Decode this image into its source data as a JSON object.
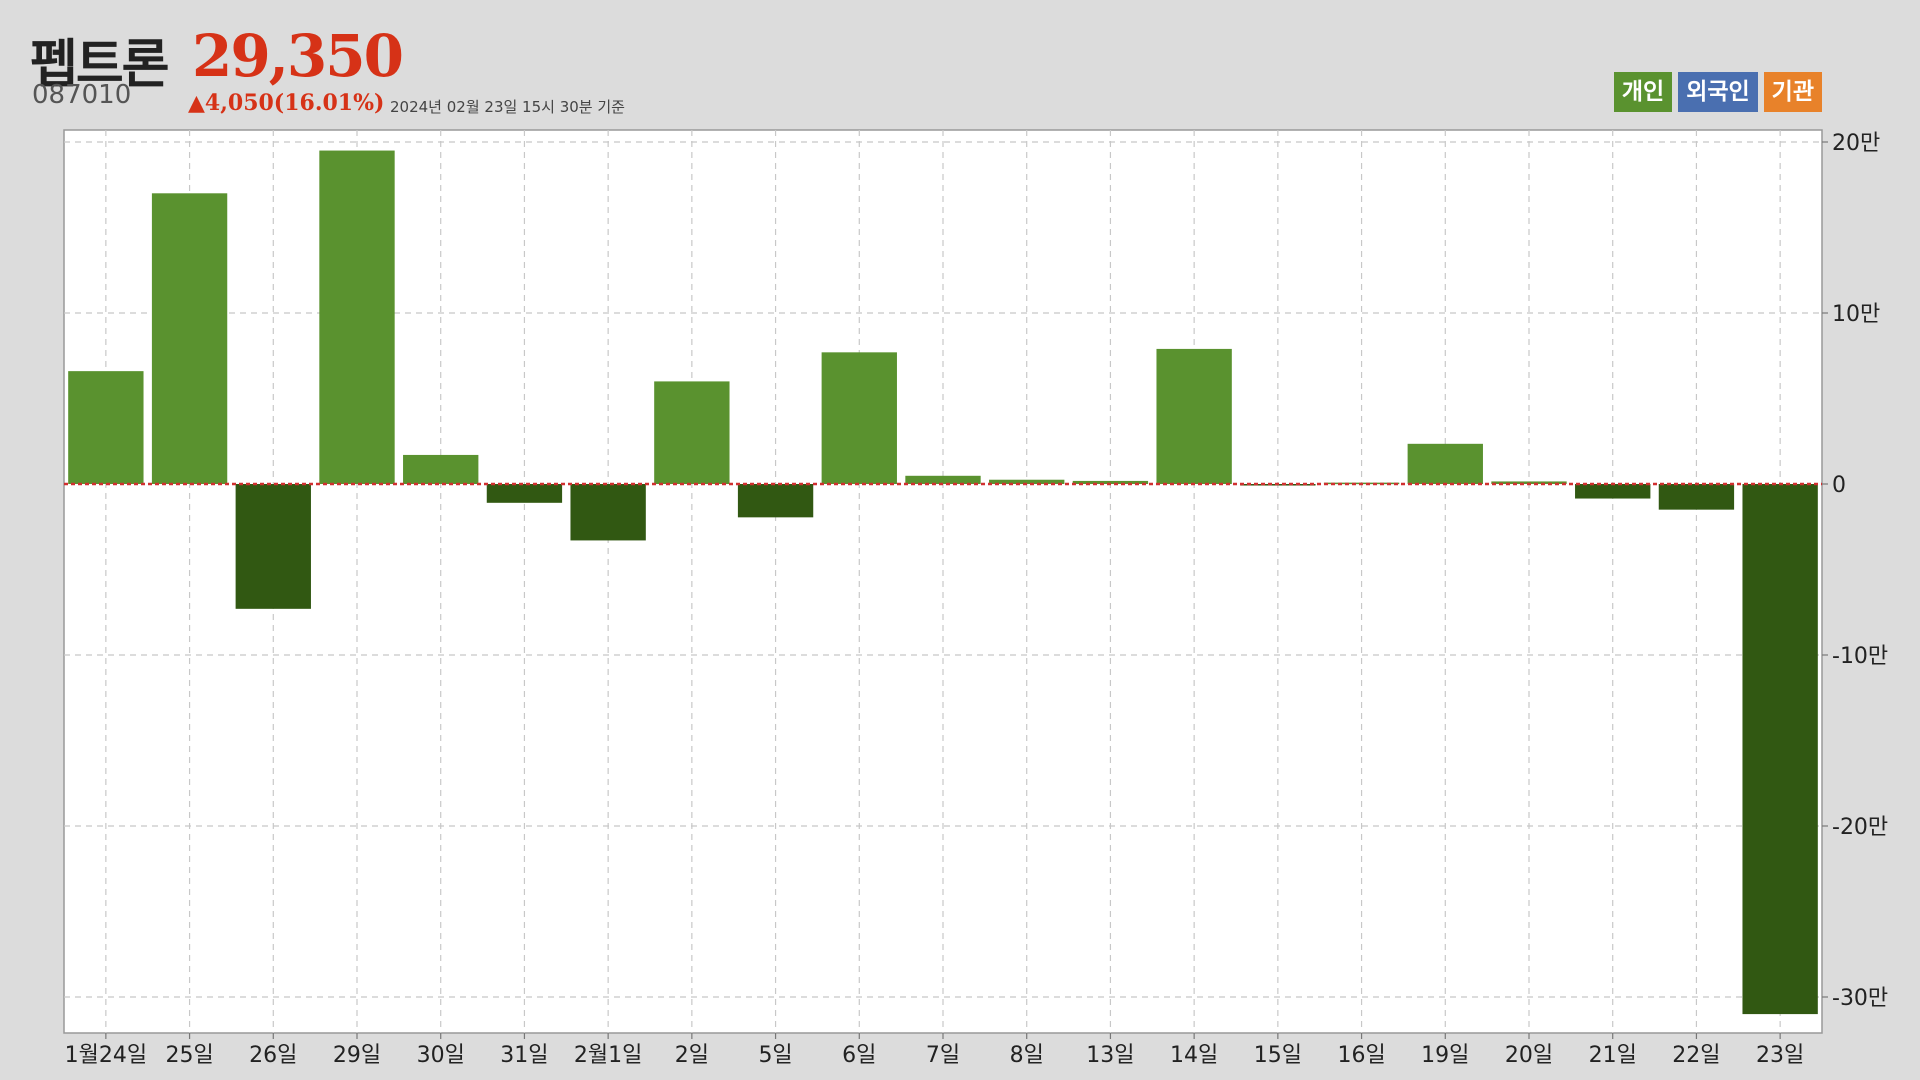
{
  "stock": {
    "name": "펩트론",
    "code": "087010",
    "price": "29,350",
    "change": "▲4,050(16.01%)",
    "as_of": "2024년 02월 23일 15시 30분 기준"
  },
  "legend": [
    {
      "label": "개인",
      "color": "#5a922f"
    },
    {
      "label": "외국인",
      "color": "#4a6fb0"
    },
    {
      "label": "기관",
      "color": "#e8822a"
    }
  ],
  "colors": {
    "positive": "#5a922f",
    "negative": "#315812",
    "zero_line": "#d03030",
    "grid": "#c8c8c8",
    "plot_bg": "#ffffff"
  },
  "chart_data": {
    "type": "bar",
    "title": "",
    "xlabel": "",
    "ylabel": "",
    "ylim": [
      -310000,
      205000
    ],
    "grid": true,
    "yticks": [
      {
        "value": 200000,
        "label": "20만"
      },
      {
        "value": 100000,
        "label": "10만"
      },
      {
        "value": 0,
        "label": "0"
      },
      {
        "value": -100000,
        "label": "-10만"
      },
      {
        "value": -200000,
        "label": "-20만"
      },
      {
        "value": -300000,
        "label": "-30만"
      }
    ],
    "categories": [
      "1월24일",
      "25일",
      "26일",
      "29일",
      "30일",
      "31일",
      "2월1일",
      "2일",
      "5일",
      "6일",
      "7일",
      "8일",
      "13일",
      "14일",
      "15일",
      "16일",
      "19일",
      "20일",
      "21일",
      "22일",
      "23일"
    ],
    "series": [
      {
        "name": "개인",
        "values": [
          66000,
          170000,
          -73000,
          195000,
          17000,
          -11000,
          -33000,
          60000,
          -19500,
          77000,
          4800,
          2500,
          1800,
          79000,
          -900,
          800,
          23500,
          1500,
          -8500,
          -15000,
          -310000
        ]
      }
    ]
  }
}
